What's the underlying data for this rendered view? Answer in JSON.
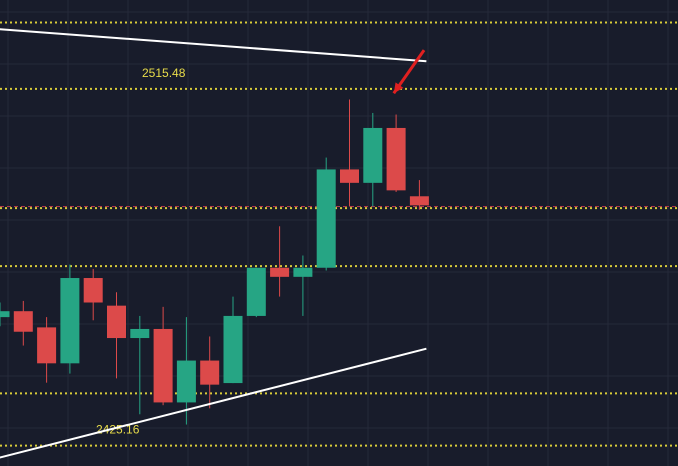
{
  "chart_data": {
    "type": "candlestick",
    "title": "",
    "xlabel": "",
    "ylabel": "",
    "ylim": [
      2420,
      2538
    ],
    "grid": true,
    "colors": {
      "background": "#181c2b",
      "grid": "#252a3a",
      "up": "#26a584",
      "down": "#dc4a4a",
      "level_line": "#d8cc3a",
      "label": "#e8dc4a",
      "trendline": "#ffffff",
      "arrow": "#e02020",
      "dash_line": "#b0384a"
    },
    "candles": [
      {
        "o": 2457.7,
        "h": 2461.4,
        "l": 2455.4,
        "c": 2459.2
      },
      {
        "o": 2459.2,
        "h": 2461.8,
        "l": 2450.5,
        "c": 2454.0
      },
      {
        "o": 2455.1,
        "h": 2457.7,
        "l": 2441.1,
        "c": 2446.0
      },
      {
        "o": 2446.0,
        "h": 2471.0,
        "l": 2443.4,
        "c": 2467.6
      },
      {
        "o": 2467.6,
        "h": 2469.9,
        "l": 2456.9,
        "c": 2461.4
      },
      {
        "o": 2460.6,
        "h": 2464.0,
        "l": 2442.2,
        "c": 2452.4
      },
      {
        "o": 2452.4,
        "h": 2458.0,
        "l": 2433.1,
        "c": 2454.7
      },
      {
        "o": 2454.7,
        "h": 2460.3,
        "l": 2435.4,
        "c": 2436.1
      },
      {
        "o": 2436.1,
        "h": 2457.7,
        "l": 2430.5,
        "c": 2446.7
      },
      {
        "o": 2446.7,
        "h": 2452.8,
        "l": 2434.6,
        "c": 2440.6
      },
      {
        "o": 2441.0,
        "h": 2462.9,
        "l": 2441.0,
        "c": 2458.0
      },
      {
        "o": 2458.0,
        "h": 2470.2,
        "l": 2457.7,
        "c": 2470.2
      },
      {
        "o": 2470.2,
        "h": 2480.7,
        "l": 2462.9,
        "c": 2467.9
      },
      {
        "o": 2467.9,
        "h": 2473.3,
        "l": 2458.0,
        "c": 2470.2
      },
      {
        "o": 2470.2,
        "h": 2498.1,
        "l": 2469.5,
        "c": 2495.1
      },
      {
        "o": 2495.1,
        "h": 2512.8,
        "l": 2485.7,
        "c": 2491.7
      },
      {
        "o": 2491.7,
        "h": 2509.4,
        "l": 2485.7,
        "c": 2505.6
      },
      {
        "o": 2505.6,
        "h": 2509.0,
        "l": 2489.4,
        "c": 2489.8
      },
      {
        "o": 2488.3,
        "h": 2492.4,
        "l": 2484.9,
        "c": 2486.0
      }
    ],
    "levels": [
      {
        "value": 2532.3,
        "label": ""
      },
      {
        "value": 2515.48,
        "label": "2515.48"
      },
      {
        "value": 2485.3,
        "label": ""
      },
      {
        "value": 2470.6,
        "label": ""
      },
      {
        "value": 2438.4,
        "label": ""
      },
      {
        "value": 2425.16,
        "label": "2425.16"
      }
    ],
    "dashed_line": {
      "value": 2485.7
    },
    "trendlines": [
      {
        "from": {
          "candle": -0.5,
          "price": 2530.8
        },
        "to": {
          "candle": 18.3,
          "price": 2522.5
        }
      },
      {
        "from": {
          "candle": -0.5,
          "price": 2421.4
        },
        "to": {
          "candle": 18.3,
          "price": 2449.7
        }
      }
    ],
    "annotation_arrow": {
      "from": {
        "candle": 18.2,
        "price": 2525.3
      },
      "to": {
        "candle": 16.9,
        "price": 2514.4
      }
    }
  }
}
